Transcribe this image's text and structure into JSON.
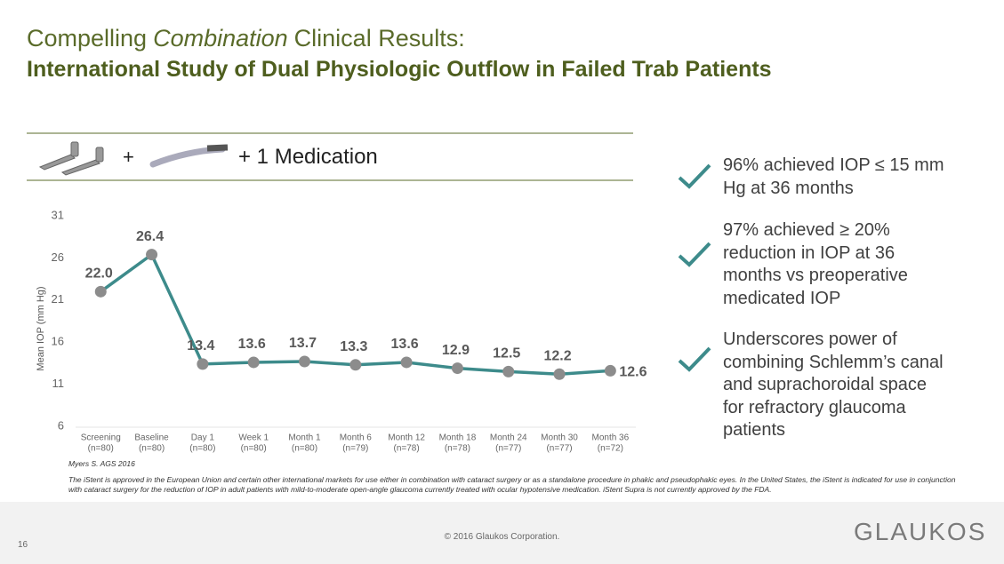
{
  "title_parts": [
    "Compelling",
    "Combination",
    "Clinical Results:"
  ],
  "subtitle": "International Study of Dual Physiologic Outflow in Failed Trab Patients",
  "device_plus": "+",
  "device_medication": "+ 1 Medication",
  "bullets": [
    "96% achieved IOP ≤ 15 mm Hg at 36 months",
    "97% achieved ≥ 20% reduction in IOP at 36 months vs preoperative medicated IOP",
    "Underscores power of combining Schlemm’s canal and suprachoroidal space for refractory glaucoma patients"
  ],
  "citation": "Myers S. AGS 2016",
  "disclaimer": "The iStent is approved in the European Union and certain other international markets for use either in combination with cataract surgery or as a standalone procedure in phakic and pseudophakic eyes.  In the United States, the iStent is indicated for use in conjunction with cataract surgery for the reduction of IOP in adult patients with mild-to-moderate open-angle glaucoma currently treated with ocular hypotensive medication.  iStent Supra is not currently approved by the FDA.",
  "page_number": "16",
  "copyright": "© 2016 Glaukos Corporation.",
  "logo": "GLAUKOS",
  "chart_data": {
    "type": "line",
    "y_label": "Mean IOP (mm Hg)",
    "categories": [
      "Screening",
      "Baseline",
      "Day 1",
      "Week 1",
      "Month 1",
      "Month 6",
      "Month 12",
      "Month 18",
      "Month 24",
      "Month 30",
      "Month 36"
    ],
    "category_counts": [
      "(n=80)",
      "(n=80)",
      "(n=80)",
      "(n=80)",
      "(n=80)",
      "(n=79)",
      "(n=78)",
      "(n=78)",
      "(n=77)",
      "(n=77)",
      "(n=72)"
    ],
    "values": [
      22.0,
      26.4,
      13.4,
      13.6,
      13.7,
      13.3,
      13.6,
      12.9,
      12.5,
      12.2,
      12.6
    ],
    "value_labels": [
      "22.0",
      "26.4",
      "13.4",
      "13.6",
      "13.7",
      "13.3",
      "13.6",
      "12.9",
      "12.5",
      "12.2",
      "12.6"
    ],
    "color": "#3d8b8b",
    "marker_color": "#8c8c8c",
    "ylim": [
      6,
      31
    ],
    "yticks": [
      6,
      11,
      16,
      21,
      26,
      31
    ],
    "grid": false
  }
}
